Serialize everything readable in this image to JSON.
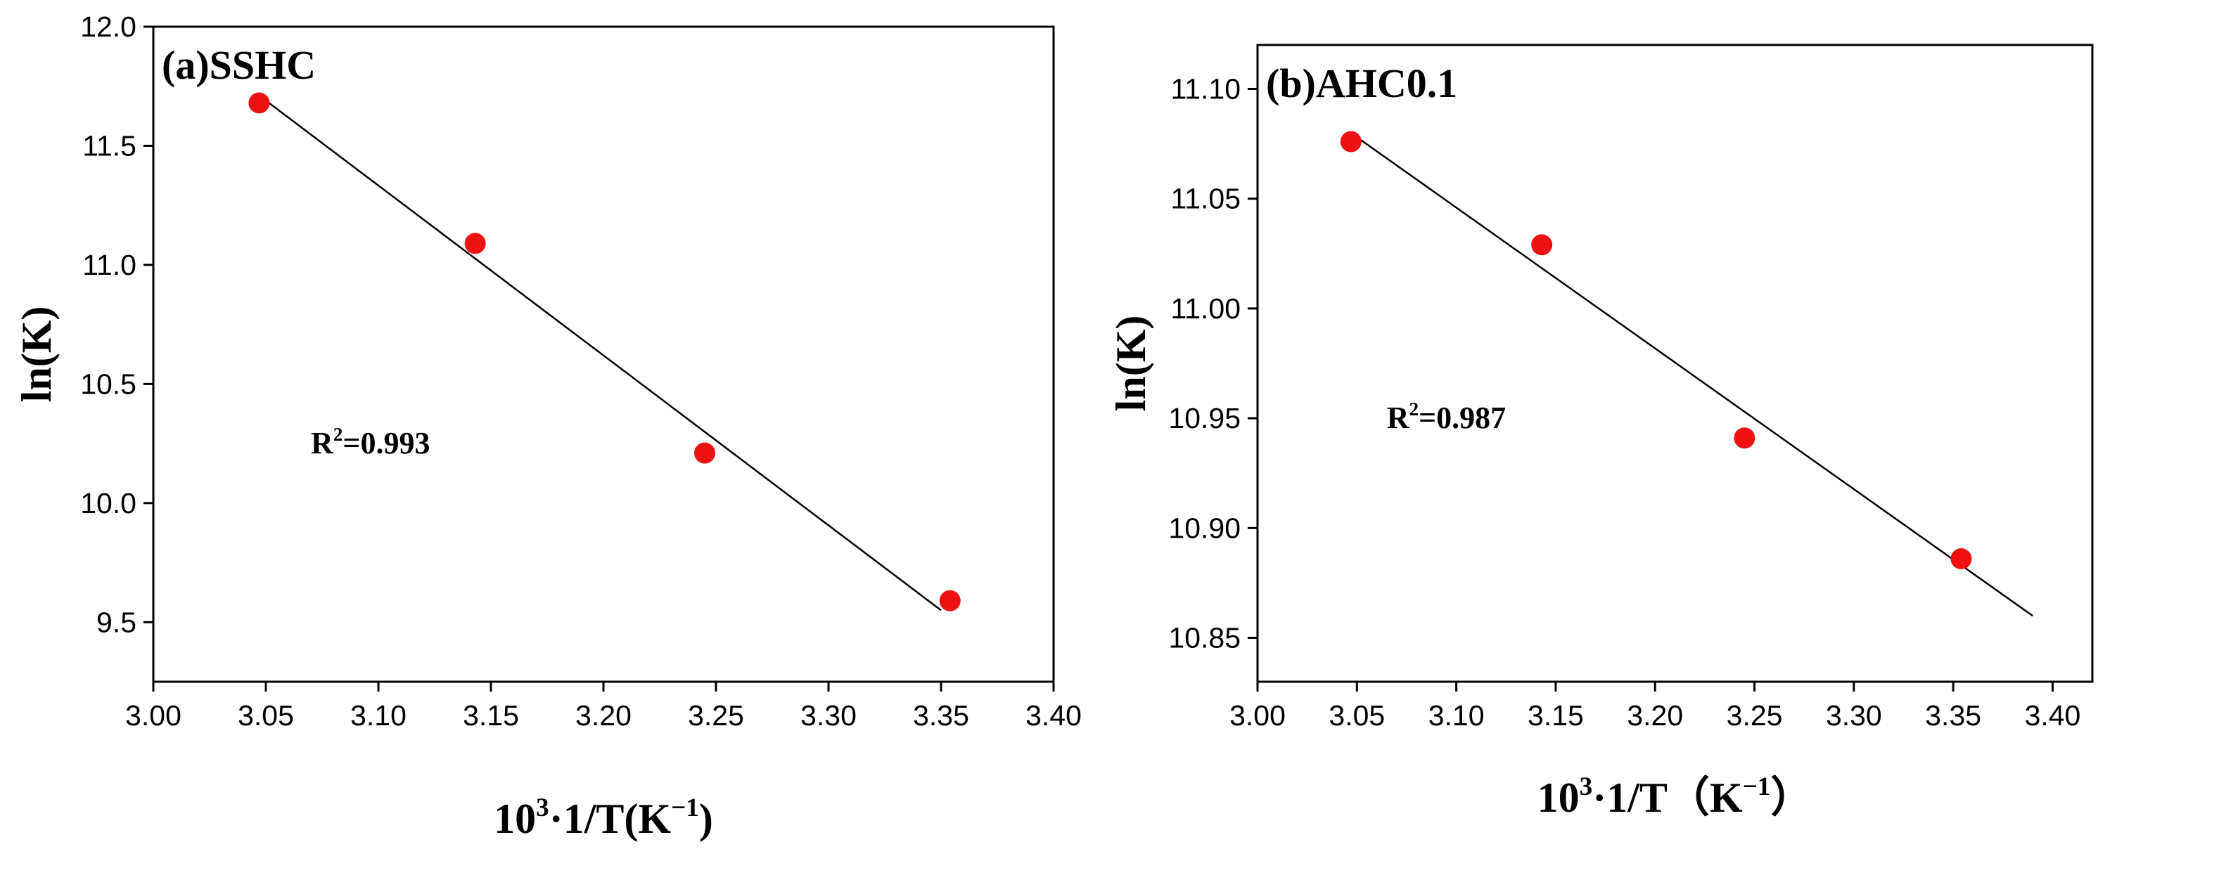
{
  "chart_data": [
    {
      "type": "scatter",
      "title": "(a)SSHC",
      "xlabel": {
        "base": "10",
        "exp": "3",
        "rest": "·1/T(K",
        "unit_exp": "−1",
        "close": ")"
      },
      "ylabel": "ln(K)",
      "xlim": [
        3.0,
        3.4
      ],
      "ylim": [
        9.25,
        12.0
      ],
      "xticks": [
        3.0,
        3.05,
        3.1,
        3.15,
        3.2,
        3.25,
        3.3,
        3.35,
        3.4
      ],
      "xtick_labels": [
        "3.00",
        "3.05",
        "3.10",
        "3.15",
        "3.20",
        "3.25",
        "3.30",
        "3.35",
        "3.40"
      ],
      "yticks": [
        9.5,
        10.0,
        10.5,
        11.0,
        11.5,
        12.0
      ],
      "ytick_labels": [
        "9.5",
        "10.0",
        "10.5",
        "11.0",
        "11.5",
        "12.0"
      ],
      "series": [
        {
          "name": "data",
          "x": [
            3.047,
            3.143,
            3.245,
            3.354
          ],
          "y": [
            11.68,
            11.09,
            10.21,
            9.59
          ],
          "color": "#ee1111"
        }
      ],
      "fit_line": {
        "x": [
          3.05,
          3.35
        ],
        "y": [
          11.69,
          9.55
        ],
        "color": "#000000"
      },
      "annotation": {
        "base": "R",
        "exp": "2",
        "rest": "=0.993",
        "x": 3.07,
        "y": 10.25
      }
    },
    {
      "type": "scatter",
      "title": "(b)AHC0.1",
      "xlabel": {
        "base": "10",
        "exp": "3",
        "rest": "·1/T（K",
        "unit_exp": "−1",
        "close": "）"
      },
      "ylabel": "ln(K)",
      "xlim": [
        3.0,
        3.42
      ],
      "ylim": [
        10.83,
        11.12
      ],
      "xticks": [
        3.0,
        3.05,
        3.1,
        3.15,
        3.2,
        3.25,
        3.3,
        3.35,
        3.4
      ],
      "xtick_labels": [
        "3.00",
        "3.05",
        "3.10",
        "3.15",
        "3.20",
        "3.25",
        "3.30",
        "3.35",
        "3.40"
      ],
      "yticks": [
        10.85,
        10.9,
        10.95,
        11.0,
        11.05,
        11.1
      ],
      "ytick_labels": [
        "10.85",
        "10.90",
        "10.95",
        "11.00",
        "11.05",
        "11.10"
      ],
      "series": [
        {
          "name": "data",
          "x": [
            3.047,
            3.143,
            3.245,
            3.354
          ],
          "y": [
            11.076,
            11.029,
            10.941,
            10.886
          ],
          "color": "#ee1111"
        }
      ],
      "fit_line": {
        "x": [
          3.05,
          3.39
        ],
        "y": [
          11.078,
          10.86
        ],
        "color": "#000000"
      },
      "annotation": {
        "base": "R",
        "exp": "2",
        "rest": "=0.987",
        "x": 3.065,
        "y": 10.95
      }
    }
  ]
}
